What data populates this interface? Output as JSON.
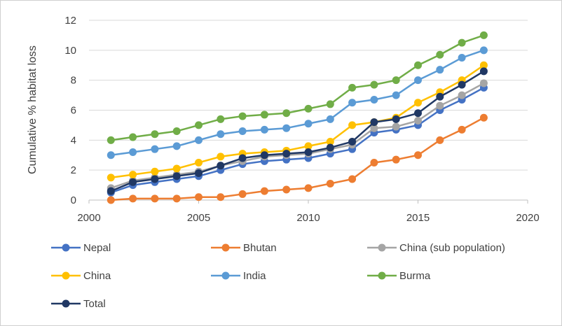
{
  "chart_data": {
    "type": "line",
    "title": "",
    "xlabel": "",
    "ylabel": "Cumulative % habitat loss",
    "xlim": [
      2000,
      2020
    ],
    "ylim": [
      0,
      12
    ],
    "x_ticks": [
      "2000",
      "2005",
      "2010",
      "2015",
      "2020"
    ],
    "y_ticks": [
      "0",
      "2",
      "4",
      "6",
      "8",
      "10",
      "12"
    ],
    "grid": "horizontal",
    "legend_position": "bottom",
    "x": [
      2001,
      2002,
      2003,
      2004,
      2005,
      2006,
      2007,
      2008,
      2009,
      2010,
      2011,
      2012,
      2013,
      2014,
      2015,
      2016,
      2017,
      2018
    ],
    "series": [
      {
        "name": "Nepal",
        "color": "#4472C4",
        "values": [
          0.5,
          1.0,
          1.2,
          1.4,
          1.6,
          2.0,
          2.4,
          2.6,
          2.7,
          2.8,
          3.1,
          3.4,
          4.5,
          4.7,
          5.0,
          6.0,
          6.7,
          7.5
        ]
      },
      {
        "name": "Bhutan",
        "color": "#ED7D31",
        "values": [
          0.0,
          0.1,
          0.1,
          0.1,
          0.2,
          0.2,
          0.4,
          0.6,
          0.7,
          0.8,
          1.1,
          1.4,
          2.5,
          2.7,
          3.0,
          4.0,
          4.7,
          5.5
        ]
      },
      {
        "name": "China (sub population)",
        "color": "#A5A5A5",
        "values": [
          0.8,
          1.3,
          1.5,
          1.7,
          1.9,
          2.3,
          2.6,
          2.9,
          3.0,
          3.1,
          3.4,
          3.7,
          4.8,
          4.9,
          5.3,
          6.3,
          7.0,
          7.8
        ]
      },
      {
        "name": "China",
        "color": "#FFC000",
        "values": [
          1.5,
          1.7,
          1.9,
          2.1,
          2.5,
          2.9,
          3.1,
          3.2,
          3.3,
          3.6,
          3.9,
          5.0,
          5.2,
          5.5,
          6.5,
          7.2,
          8.0,
          9.0
        ]
      },
      {
        "name": "India",
        "color": "#5B9BD5",
        "values": [
          3.0,
          3.2,
          3.4,
          3.6,
          4.0,
          4.4,
          4.6,
          4.7,
          4.8,
          5.1,
          5.4,
          6.5,
          6.7,
          7.0,
          8.0,
          8.7,
          9.5,
          10.0
        ]
      },
      {
        "name": "Burma",
        "color": "#70AD47",
        "values": [
          4.0,
          4.2,
          4.4,
          4.6,
          5.0,
          5.4,
          5.6,
          5.7,
          5.8,
          6.1,
          6.4,
          7.5,
          7.7,
          8.0,
          9.0,
          9.7,
          10.5,
          11.0
        ]
      },
      {
        "name": "Total",
        "color": "#203864",
        "values": [
          0.6,
          1.2,
          1.4,
          1.6,
          1.8,
          2.3,
          2.8,
          3.0,
          3.1,
          3.2,
          3.5,
          3.9,
          5.2,
          5.4,
          5.8,
          6.9,
          7.7,
          8.6
        ]
      }
    ]
  }
}
